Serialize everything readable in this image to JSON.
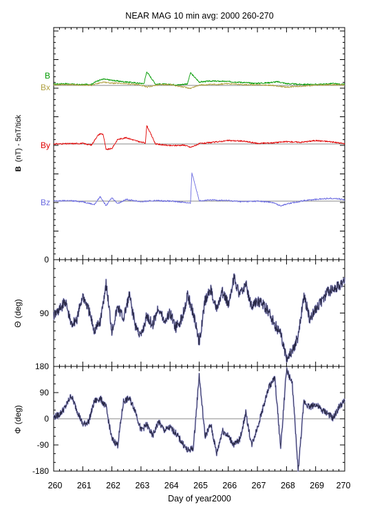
{
  "chart_data": {
    "type": "line",
    "title": "NEAR MAG 10 min avg: 2000 260-270",
    "xlabel": "Day of year2000",
    "xlim": [
      260,
      270
    ],
    "x_ticks": [
      "260",
      "261",
      "262",
      "263",
      "264",
      "265",
      "266",
      "267",
      "268",
      "269",
      "270"
    ],
    "panels": [
      {
        "id": "b",
        "ylabel_bold": "B",
        "ylabel_rest": "(nT) - 5nT/tick",
        "y_ticks": [
          "0"
        ],
        "series": [
          {
            "name": "B",
            "color": "#009a00",
            "x": [
              260.0,
              260.4,
              260.9,
              261.3,
              261.5,
              261.7,
              262.0,
              262.3,
              262.6,
              262.9,
              263.1,
              263.2,
              263.5,
              263.9,
              264.3,
              264.6,
              264.7,
              265.0,
              265.4,
              265.9,
              266.4,
              266.9,
              267.3,
              267.7,
              268.0,
              268.4,
              268.8,
              269.2,
              269.6,
              269.9,
              270.0
            ],
            "values": [
              1.2,
              1.5,
              0.6,
              1.0,
              4.0,
              5.5,
              4.5,
              3.5,
              2.8,
              2.0,
              1.5,
              12.0,
              1.2,
              1.0,
              0.5,
              1.5,
              11.0,
              3.0,
              3.8,
              3.5,
              2.8,
              1.8,
              2.2,
              3.2,
              1.6,
              1.0,
              0.8,
              1.0,
              1.6,
              0.8,
              1.0
            ]
          },
          {
            "name": "Bx",
            "color": "#b0a040",
            "x": [
              260.0,
              260.4,
              260.9,
              261.3,
              261.5,
              261.7,
              262.0,
              262.3,
              262.6,
              262.9,
              263.2,
              263.6,
              264.0,
              264.4,
              264.7,
              265.0,
              265.5,
              266.0,
              266.5,
              267.0,
              267.5,
              268.0,
              268.3,
              268.6,
              269.0,
              269.4,
              269.8,
              270.0
            ],
            "values": [
              0.5,
              0.8,
              0.3,
              0.2,
              1.5,
              3.0,
              2.0,
              1.8,
              1.2,
              0.8,
              -1.5,
              0.5,
              0.8,
              -1.2,
              -2.5,
              0.3,
              0.8,
              1.5,
              0.8,
              0.4,
              0.0,
              -1.5,
              -1.0,
              -0.5,
              0.2,
              0.5,
              0.5,
              0.4
            ]
          },
          {
            "name": "By",
            "color": "#e00000",
            "x": [
              260.0,
              260.5,
              261.0,
              261.3,
              261.5,
              261.6,
              261.7,
              261.8,
              262.0,
              262.2,
              262.5,
              262.8,
              263.0,
              263.15,
              263.2,
              263.5,
              264.0,
              264.5,
              264.7,
              265.0,
              265.5,
              266.0,
              266.5,
              267.0,
              267.5,
              268.0,
              268.5,
              269.0,
              269.5,
              270.0
            ],
            "values": [
              0.0,
              0.2,
              0.5,
              -1.0,
              7.0,
              9.0,
              8.5,
              -5.0,
              -4.0,
              4.0,
              5.5,
              3.0,
              1.5,
              1.0,
              16.0,
              0.0,
              -1.5,
              -1.0,
              -3.0,
              0.2,
              1.5,
              3.0,
              2.5,
              0.5,
              1.0,
              2.0,
              1.5,
              3.0,
              2.0,
              0.2
            ]
          },
          {
            "name": "Bz",
            "color": "#6a6ae0",
            "x": [
              260.0,
              260.5,
              261.0,
              261.4,
              261.6,
              261.8,
              262.0,
              262.2,
              262.5,
              263.0,
              263.5,
              264.0,
              264.5,
              264.7,
              264.75,
              265.0,
              265.5,
              266.0,
              266.5,
              267.0,
              267.5,
              267.8,
              268.0,
              268.3,
              268.6,
              269.0,
              269.5,
              269.8,
              270.0
            ],
            "values": [
              0.0,
              0.5,
              -0.5,
              -3.0,
              4.0,
              -4.0,
              3.0,
              -2.0,
              1.5,
              -0.5,
              0.5,
              0.0,
              -1.0,
              -2.0,
              25.0,
              0.5,
              1.0,
              0.5,
              -0.5,
              0.0,
              -1.0,
              -4.0,
              -2.5,
              -1.0,
              0.5,
              1.5,
              2.5,
              2.0,
              1.0
            ]
          }
        ]
      },
      {
        "id": "theta",
        "ylabel_bold": "Θ",
        "ylabel_rest": "(deg)",
        "ylim": [
          0,
          180
        ],
        "y_ticks": [
          "90",
          "180"
        ],
        "series": [
          {
            "name": "",
            "color": "#2a2a48",
            "x": [
              260.0,
              260.2,
              260.4,
              260.6,
              260.8,
              261.0,
              261.2,
              261.4,
              261.6,
              261.8,
              262.0,
              262.2,
              262.4,
              262.6,
              262.8,
              263.0,
              263.2,
              263.4,
              263.6,
              263.8,
              264.0,
              264.2,
              264.4,
              264.6,
              264.8,
              265.0,
              265.2,
              265.4,
              265.6,
              265.8,
              266.0,
              266.2,
              266.4,
              266.6,
              266.8,
              267.0,
              267.2,
              267.4,
              267.6,
              267.8,
              268.0,
              268.2,
              268.4,
              268.6,
              268.8,
              269.0,
              269.2,
              269.4,
              269.6,
              269.8,
              270.0
            ],
            "values": [
              95,
              85,
              70,
              110,
              100,
              60,
              85,
              120,
              105,
              40,
              120,
              80,
              100,
              60,
              110,
              130,
              95,
              110,
              80,
              105,
              90,
              115,
              100,
              60,
              90,
              140,
              70,
              50,
              85,
              55,
              75,
              30,
              60,
              40,
              80,
              70,
              75,
              90,
              110,
              125,
              165,
              155,
              130,
              60,
              100,
              85,
              70,
              55,
              50,
              45,
              30
            ]
          }
        ]
      },
      {
        "id": "phi",
        "ylabel_bold": "Φ",
        "ylabel_rest": "(deg)",
        "ylim": [
          -180,
          180
        ],
        "y_ticks": [
          "180",
          "90",
          "0",
          "-90",
          "-180"
        ],
        "series": [
          {
            "name": "",
            "color": "#2a2a48",
            "x": [
              260.0,
              260.2,
              260.4,
              260.6,
              260.8,
              261.0,
              261.2,
              261.4,
              261.6,
              261.8,
              262.0,
              262.2,
              262.4,
              262.6,
              262.8,
              263.0,
              263.2,
              263.4,
              263.6,
              263.8,
              264.0,
              264.2,
              264.4,
              264.6,
              264.8,
              265.0,
              265.2,
              265.4,
              265.6,
              265.8,
              266.0,
              266.2,
              266.4,
              266.6,
              266.8,
              267.0,
              267.2,
              267.4,
              267.6,
              267.8,
              268.0,
              268.2,
              268.4,
              268.6,
              268.8,
              269.0,
              269.2,
              269.4,
              269.6,
              269.8,
              270.0
            ],
            "values": [
              5,
              15,
              40,
              80,
              30,
              -20,
              -10,
              60,
              70,
              40,
              -70,
              -90,
              60,
              70,
              30,
              -40,
              -20,
              -60,
              -10,
              -40,
              -30,
              -50,
              -80,
              -110,
              -100,
              150,
              -60,
              -20,
              -120,
              -40,
              -60,
              -90,
              -70,
              20,
              -90,
              -30,
              40,
              110,
              140,
              -100,
              170,
              120,
              -180,
              60,
              40,
              50,
              30,
              20,
              0,
              40,
              60
            ]
          }
        ]
      }
    ]
  }
}
